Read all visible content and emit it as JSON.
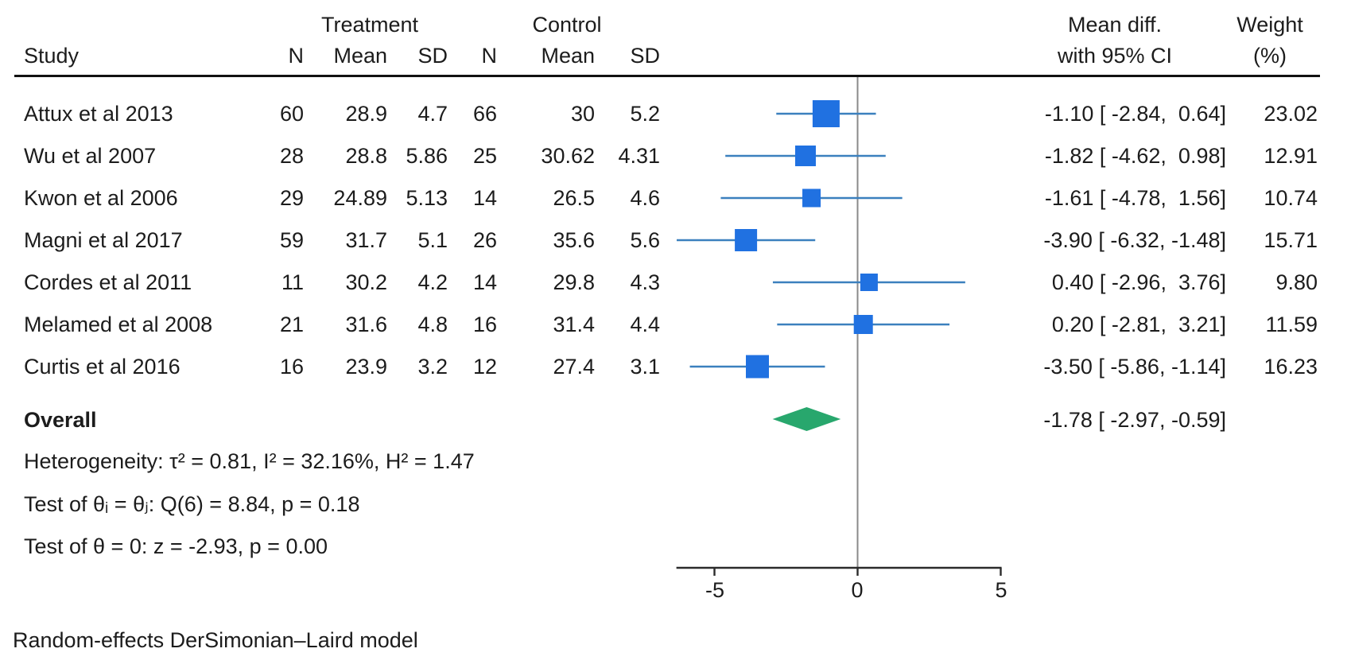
{
  "header": {
    "study": "Study",
    "treatment_group": "Treatment",
    "control_group": "Control",
    "col_n": "N",
    "col_mean": "Mean",
    "col_sd": "SD",
    "effect_line1": "Mean diff.",
    "effect_line2": "with 95% CI",
    "weight_line1": "Weight",
    "weight_line2": "(%)"
  },
  "studies": [
    {
      "name": "Attux et al 2013",
      "treatment": {
        "n": "60",
        "mean": "28.9",
        "sd": "4.7"
      },
      "control": {
        "n": "66",
        "mean": "30",
        "sd": "5.2"
      },
      "effect_label": "-1.10 [ -2.84,  0.64]",
      "weight_label": "23.02"
    },
    {
      "name": "Wu et al 2007",
      "treatment": {
        "n": "28",
        "mean": "28.8",
        "sd": "5.86"
      },
      "control": {
        "n": "25",
        "mean": "30.62",
        "sd": "4.31"
      },
      "effect_label": "-1.82 [ -4.62,  0.98]",
      "weight_label": "12.91"
    },
    {
      "name": "Kwon et al 2006",
      "treatment": {
        "n": "29",
        "mean": "24.89",
        "sd": "5.13"
      },
      "control": {
        "n": "14",
        "mean": "26.5",
        "sd": "4.6"
      },
      "effect_label": "-1.61 [ -4.78,  1.56]",
      "weight_label": "10.74"
    },
    {
      "name": "Magni et al 2017",
      "treatment": {
        "n": "59",
        "mean": "31.7",
        "sd": "5.1"
      },
      "control": {
        "n": "26",
        "mean": "35.6",
        "sd": "5.6"
      },
      "effect_label": "-3.90 [ -6.32, -1.48]",
      "weight_label": "15.71"
    },
    {
      "name": "Cordes et al 2011",
      "treatment": {
        "n": "11",
        "mean": "30.2",
        "sd": "4.2"
      },
      "control": {
        "n": "14",
        "mean": "29.8",
        "sd": "4.3"
      },
      "effect_label": "0.40 [ -2.96,  3.76]",
      "weight_label": "9.80"
    },
    {
      "name": "Melamed et al 2008",
      "treatment": {
        "n": "21",
        "mean": "31.6",
        "sd": "4.8"
      },
      "control": {
        "n": "16",
        "mean": "31.4",
        "sd": "4.4"
      },
      "effect_label": "0.20 [ -2.81,  3.21]",
      "weight_label": "11.59"
    },
    {
      "name": "Curtis et al 2016",
      "treatment": {
        "n": "16",
        "mean": "23.9",
        "sd": "3.2"
      },
      "control": {
        "n": "12",
        "mean": "27.4",
        "sd": "3.1"
      },
      "effect_label": "-3.50 [ -5.86, -1.14]",
      "weight_label": "16.23"
    }
  ],
  "overall": {
    "label": "Overall",
    "effect_label": "-1.78 [ -2.97, -0.59]"
  },
  "stats": {
    "heterogeneity": "Heterogeneity: τ² = 0.81, I² = 32.16%, H² = 1.47",
    "test_theta_ij": "Test of θᵢ = θⱼ: Q(6) = 8.84, p = 0.18",
    "test_theta_zero": "Test of θ = 0: z = -2.93, p = 0.00"
  },
  "axis": {
    "ticks": [
      "-5",
      "0",
      "5"
    ]
  },
  "footer": "Random-effects DerSimonian–Laird model",
  "colors": {
    "square": "#2071e1",
    "ci_line": "#3b80be",
    "diamond": "#28a76d",
    "zero_line": "#8a8a8a",
    "axis": "#2b2b2b"
  },
  "chart_data": {
    "type": "scatter",
    "subtype": "forest-plot",
    "title": "",
    "xlabel": "Mean difference with 95% CI",
    "xlim": [
      -6.33,
      5.03
    ],
    "xticks": [
      -5,
      0,
      5
    ],
    "null_line": 0,
    "grid": false,
    "legend": "none",
    "series": [
      {
        "name": "Attux et al 2013",
        "effect": -1.1,
        "ci_low": -2.84,
        "ci_high": 0.64,
        "weight_pct": 23.02
      },
      {
        "name": "Wu et al 2007",
        "effect": -1.82,
        "ci_low": -4.62,
        "ci_high": 0.98,
        "weight_pct": 12.91
      },
      {
        "name": "Kwon et al 2006",
        "effect": -1.61,
        "ci_low": -4.78,
        "ci_high": 1.56,
        "weight_pct": 10.74
      },
      {
        "name": "Magni et al 2017",
        "effect": -3.9,
        "ci_low": -6.32,
        "ci_high": -1.48,
        "weight_pct": 15.71
      },
      {
        "name": "Cordes et al 2011",
        "effect": 0.4,
        "ci_low": -2.96,
        "ci_high": 3.76,
        "weight_pct": 9.8
      },
      {
        "name": "Melamed et al 2008",
        "effect": 0.2,
        "ci_low": -2.81,
        "ci_high": 3.21,
        "weight_pct": 11.59
      },
      {
        "name": "Curtis et al 2016",
        "effect": -3.5,
        "ci_low": -5.86,
        "ci_high": -1.14,
        "weight_pct": 16.23
      }
    ],
    "overall": {
      "effect": -1.78,
      "ci_low": -2.97,
      "ci_high": -0.59
    },
    "model_note": "Random-effects DerSimonian–Laird model"
  }
}
